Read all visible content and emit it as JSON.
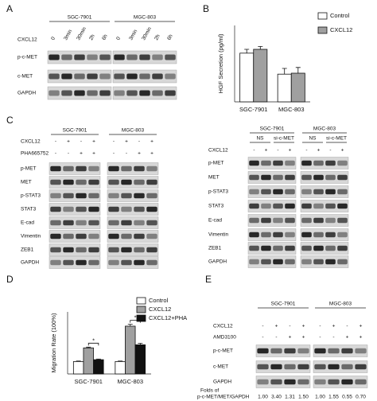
{
  "panel_letters": [
    "A",
    "B",
    "C",
    "D",
    "E"
  ],
  "blot_a": {
    "groups": [
      "SGC-7901",
      "MGC-803"
    ],
    "treatments": [
      {
        "name": "CXCL12",
        "signs": [
          "0",
          "3min",
          "30min",
          "2h",
          "6h",
          "0",
          "3min",
          "30min",
          "2h",
          "6h"
        ]
      }
    ],
    "rows": [
      "p-c-MET",
      "c-MET",
      "GAPDH"
    ]
  },
  "blot_c_left": {
    "groups": [
      "SGC-7901",
      "MGC-803"
    ],
    "treatments": [
      {
        "name": "CXCL12",
        "signs": [
          "-",
          "+",
          "-",
          "+",
          "-",
          "+",
          "-",
          "+"
        ]
      },
      {
        "name": "PHA665752",
        "signs": [
          "-",
          "-",
          "+",
          "+",
          "-",
          "-",
          "+",
          "+"
        ]
      }
    ],
    "rows": [
      "p-MET",
      "MET",
      "p-STAT3",
      "STAT3",
      "E-cad",
      "Vimentin",
      "ZEB1",
      "GAPDH"
    ]
  },
  "blot_c_right": {
    "groups": [
      "SGC-7901",
      "MGC-803"
    ],
    "subgroups": [
      "NS",
      "si-c-MET",
      "NS",
      "si-c-MET"
    ],
    "treatments": [
      {
        "name": "CXCL12",
        "signs": [
          "-",
          "+",
          "-",
          "+",
          "-",
          "+",
          "-",
          "+"
        ]
      }
    ],
    "rows": [
      "p-MET",
      "MET",
      "p-STAT3",
      "STAT3",
      "E-cad",
      "Vimentin",
      "ZEB1",
      "GAPDH"
    ]
  },
  "blot_e": {
    "groups": [
      "SGC-7901",
      "MGC-803"
    ],
    "treatments": [
      {
        "name": "CXCL12",
        "signs": [
          "-",
          "+",
          "-",
          "+",
          "-",
          "+",
          "-",
          "+"
        ]
      },
      {
        "name": "AMD3100",
        "signs": [
          "-",
          "-",
          "+",
          "+",
          "-",
          "-",
          "+",
          "+"
        ]
      }
    ],
    "rows": [
      "p-c-MET",
      "c-MET",
      "GAPDH"
    ],
    "folds_label": [
      "Folds of",
      "p-c-MET/MET/GAPDH"
    ],
    "folds": [
      "1.00",
      "3.40",
      "1.31",
      "1.50",
      "1.00",
      "1.55",
      "0.55",
      "0.70"
    ]
  },
  "chart_data": [
    {
      "type": "bar",
      "y_label": "HGF Secretion (pg/ml)",
      "categories": [
        "SGC-7901",
        "MGC-803"
      ],
      "series": [
        {
          "name": "Control",
          "color": "#ffffff",
          "values": [
            25.5,
            14.5
          ],
          "errors": [
            2,
            3
          ]
        },
        {
          "name": "CXCL12",
          "color": "#a0a0a0",
          "values": [
            27.5,
            15
          ],
          "errors": [
            1.5,
            3
          ]
        }
      ],
      "ylim": [
        0,
        40
      ]
    },
    {
      "type": "bar",
      "y_label": "Migration Rate (100%)",
      "categories": [
        "SGC-7901",
        "MGC-803"
      ],
      "series": [
        {
          "name": "Control",
          "color": "#ffffff",
          "values": [
            100,
            100
          ],
          "errors": [
            4,
            4
          ]
        },
        {
          "name": "CXCL12",
          "color": "#a0a0a0",
          "values": [
            210,
            385
          ],
          "errors": [
            6,
            15
          ]
        },
        {
          "name": "CXCL12+PHA",
          "color": "#111111",
          "values": [
            115,
            235
          ],
          "errors": [
            5,
            12
          ]
        }
      ],
      "annotations": [
        "*",
        "*"
      ],
      "ylim": [
        0,
        500
      ]
    }
  ]
}
